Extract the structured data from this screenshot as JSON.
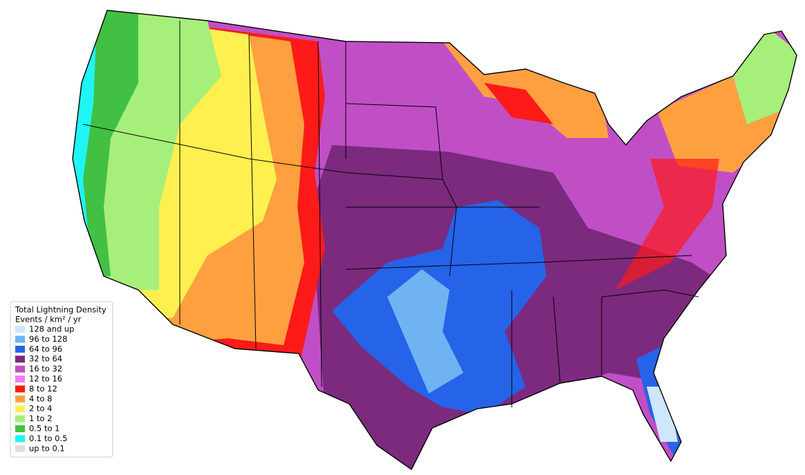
{
  "legend": {
    "title": "Total Lightning Density",
    "subtitle": "Events / km² / yr",
    "items": [
      {
        "label": "128 and up",
        "color": "#cfe6fb"
      },
      {
        "label": "96 to 128",
        "color": "#6fb3f3"
      },
      {
        "label": "64 to 96",
        "color": "#2563e8"
      },
      {
        "label": "32 to 64",
        "color": "#7b2a7e"
      },
      {
        "label": "16 to 32",
        "color": "#c04fc6"
      },
      {
        "label": "12 to 16",
        "color": "#f07cf0"
      },
      {
        "label": "8 to 12",
        "color": "#ff1a1a"
      },
      {
        "label": "4 to 8",
        "color": "#ffa040"
      },
      {
        "label": "2 to 4",
        "color": "#fff050"
      },
      {
        "label": "1 to 2",
        "color": "#a6ef7a"
      },
      {
        "label": "0.5 to 1",
        "color": "#42c043"
      },
      {
        "label": "0.1 to 0.5",
        "color": "#1ff5f5"
      },
      {
        "label": "up to 0.1",
        "color": "#dddddd"
      }
    ]
  }
}
